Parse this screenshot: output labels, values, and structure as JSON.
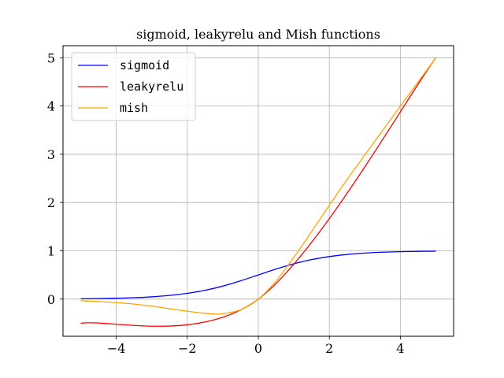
{
  "chart_data": {
    "type": "line",
    "title": "sigmoid, leakyrelu and Mish functions",
    "xlabel": "",
    "ylabel": "",
    "xlim": [
      -5.5,
      5.5
    ],
    "ylim": [
      -0.77,
      5.25
    ],
    "xticks": [
      -4,
      -2,
      0,
      2,
      4
    ],
    "yticks": [
      0,
      1,
      2,
      3,
      4,
      5
    ],
    "xtick_labels": [
      "−4",
      "−2",
      "0",
      "2",
      "4"
    ],
    "ytick_labels": [
      "0",
      "1",
      "2",
      "3",
      "4",
      "5"
    ],
    "grid": true,
    "legend_position": "top-left",
    "series": [
      {
        "name": "sigmoid",
        "color": "#0000ff",
        "x": [
          -5,
          -4.5,
          -4,
          -3.5,
          -3,
          -2.5,
          -2,
          -1.5,
          -1,
          -0.5,
          0,
          0.5,
          1,
          1.5,
          2,
          2.5,
          3,
          3.5,
          4,
          4.5,
          5
        ],
        "y": [
          0.007,
          0.011,
          0.018,
          0.029,
          0.047,
          0.076,
          0.119,
          0.182,
          0.269,
          0.378,
          0.5,
          0.622,
          0.731,
          0.818,
          0.881,
          0.924,
          0.953,
          0.971,
          0.982,
          0.989,
          0.993
        ]
      },
      {
        "name": "leakyrelu",
        "color": "#ff0000",
        "x": [
          -5,
          0,
          5
        ],
        "y": [
          -0.5,
          0,
          5
        ]
      },
      {
        "name": "mish",
        "color": "#ffa500",
        "x": [
          -5,
          -4.5,
          -4,
          -3.5,
          -3,
          -2.5,
          -2,
          -1.5,
          -1.2,
          -1,
          -0.5,
          0,
          0.5,
          1,
          1.5,
          2,
          2.5,
          3,
          3.5,
          4,
          4.5,
          5
        ],
        "y": [
          -0.034,
          -0.05,
          -0.073,
          -0.103,
          -0.146,
          -0.198,
          -0.252,
          -0.294,
          -0.309,
          -0.303,
          -0.222,
          0,
          0.375,
          0.865,
          1.397,
          1.944,
          2.477,
          2.987,
          3.491,
          3.997,
          4.499,
          5.0
        ]
      }
    ]
  }
}
